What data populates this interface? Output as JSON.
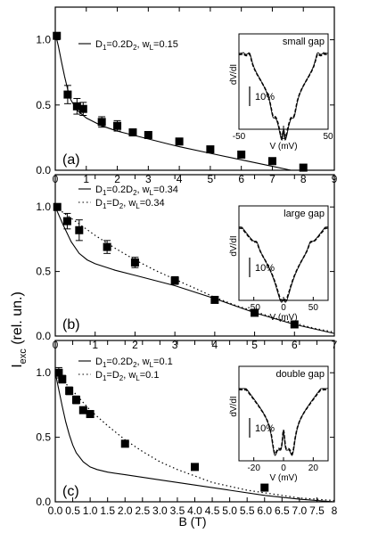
{
  "figure": {
    "ylabel_main": "I",
    "ylabel_sub": "exc",
    "ylabel_tail": " (rel. un.)",
    "xlabel": "B (T)"
  },
  "chart_data": [
    {
      "type": "scatter",
      "panel": "(a)",
      "xlim": [
        0,
        9
      ],
      "ylim": [
        0,
        1.25
      ],
      "xticks": [
        0,
        1,
        2,
        3,
        4,
        5,
        6,
        7,
        8,
        9
      ],
      "yticks": [
        0.0,
        0.5,
        1.0
      ],
      "points": [
        {
          "x": 0.05,
          "y": 1.03,
          "err": 0
        },
        {
          "x": 0.4,
          "y": 0.58,
          "err": 0.07
        },
        {
          "x": 0.7,
          "y": 0.49,
          "err": 0.06
        },
        {
          "x": 0.9,
          "y": 0.47,
          "err": 0.05
        },
        {
          "x": 1.5,
          "y": 0.37,
          "err": 0.04
        },
        {
          "x": 2.0,
          "y": 0.34,
          "err": 0.04
        },
        {
          "x": 2.5,
          "y": 0.29,
          "err": 0.02
        },
        {
          "x": 3.0,
          "y": 0.27,
          "err": 0.02
        },
        {
          "x": 4.0,
          "y": 0.22,
          "err": 0.02
        },
        {
          "x": 5.0,
          "y": 0.16,
          "err": 0.02
        },
        {
          "x": 6.0,
          "y": 0.12,
          "err": 0.02
        },
        {
          "x": 7.0,
          "y": 0.07,
          "err": 0.02
        },
        {
          "x": 8.0,
          "y": 0.02,
          "err": 0.02
        }
      ],
      "series": [
        {
          "name_main": "D",
          "name_parts": [
            [
              "1",
              true
            ],
            [
              "=0.2D",
              false
            ],
            [
              "2",
              true
            ],
            [
              ", w",
              false
            ],
            [
              "L",
              true
            ],
            [
              "=0.15",
              false
            ]
          ],
          "style": "solid",
          "x": [
            0,
            0.1,
            0.2,
            0.3,
            0.4,
            0.5,
            0.7,
            1.0,
            1.5,
            2,
            3,
            4,
            5,
            6,
            7,
            7.6
          ],
          "y": [
            1.05,
            0.95,
            0.83,
            0.72,
            0.62,
            0.54,
            0.46,
            0.4,
            0.34,
            0.3,
            0.24,
            0.18,
            0.13,
            0.08,
            0.03,
            0.0
          ]
        }
      ],
      "inset": {
        "title": "small gap",
        "xlabel": "V (mV)",
        "ylabel": "dV/dI",
        "scale": "10%",
        "xlim": [
          -50,
          50
        ],
        "xticks": [
          -50,
          0,
          50
        ],
        "type": "small"
      }
    },
    {
      "type": "scatter",
      "panel": "(b)",
      "xlim": [
        0,
        7
      ],
      "ylim": [
        0,
        1.25
      ],
      "xticks": [
        0,
        1,
        2,
        3,
        4,
        5,
        6,
        7
      ],
      "yticks": [
        0.0,
        0.5,
        1.0
      ],
      "points": [
        {
          "x": 0.05,
          "y": 1.0,
          "err": 0
        },
        {
          "x": 0.3,
          "y": 0.89,
          "err": 0.06
        },
        {
          "x": 0.6,
          "y": 0.82,
          "err": 0.08
        },
        {
          "x": 1.3,
          "y": 0.69,
          "err": 0.05
        },
        {
          "x": 2.0,
          "y": 0.57,
          "err": 0.04
        },
        {
          "x": 3.0,
          "y": 0.43,
          "err": 0.03
        },
        {
          "x": 4.0,
          "y": 0.28,
          "err": 0.02
        },
        {
          "x": 5.0,
          "y": 0.18,
          "err": 0.02
        },
        {
          "x": 6.0,
          "y": 0.09,
          "err": 0.02
        }
      ],
      "series": [
        {
          "name_main": "D",
          "name_parts": [
            [
              "1",
              true
            ],
            [
              "=0.2D",
              false
            ],
            [
              "2",
              true
            ],
            [
              ", w",
              false
            ],
            [
              "L",
              true
            ],
            [
              "=0.34",
              false
            ]
          ],
          "style": "solid",
          "x": [
            0,
            0.2,
            0.4,
            0.6,
            0.8,
            1.0,
            1.5,
            2,
            3,
            4,
            5,
            6,
            7
          ],
          "y": [
            1.0,
            0.86,
            0.73,
            0.64,
            0.59,
            0.56,
            0.51,
            0.47,
            0.39,
            0.29,
            0.18,
            0.09,
            0.02
          ]
        },
        {
          "name_main": "D",
          "name_parts": [
            [
              "1",
              true
            ],
            [
              "=D",
              false
            ],
            [
              "2",
              true
            ],
            [
              ",     w",
              false
            ],
            [
              "L",
              true
            ],
            [
              "=0.34",
              false
            ]
          ],
          "style": "dotted",
          "x": [
            0,
            0.5,
            1,
            1.5,
            2,
            2.5,
            3,
            3.5,
            4,
            4.5,
            5,
            5.5,
            6,
            6.5,
            7
          ],
          "y": [
            1.0,
            0.89,
            0.78,
            0.68,
            0.59,
            0.51,
            0.44,
            0.37,
            0.3,
            0.24,
            0.19,
            0.14,
            0.1,
            0.06,
            0.03
          ]
        }
      ],
      "inset": {
        "title": "large gap",
        "xlabel": "V (mV)",
        "ylabel": "dV/dI",
        "scale": "10%",
        "xlim": [
          -75,
          75
        ],
        "xticks": [
          -50,
          0,
          50
        ],
        "type": "large"
      }
    },
    {
      "type": "scatter",
      "panel": "(c)",
      "xlim": [
        0,
        8
      ],
      "ylim": [
        0,
        1.25
      ],
      "xticks": [
        0,
        0.5,
        1,
        1.5,
        2,
        2.5,
        3,
        3.5,
        4,
        4.5,
        5,
        5.5,
        6,
        6.5,
        7,
        7.5,
        8
      ],
      "xticklabels": [
        "0.0",
        "0.5",
        "1.0",
        "1.5",
        "2.0",
        "2.5",
        "3.0",
        "3.5",
        "4.0",
        "4.5",
        "5.0",
        "5.5",
        "6.0",
        "6.5",
        "7.0",
        "7.5",
        "8"
      ],
      "yticks": [
        0.0,
        0.5,
        1.0
      ],
      "points": [
        {
          "x": 0.1,
          "y": 1.0,
          "err": 0.04
        },
        {
          "x": 0.2,
          "y": 0.95,
          "err": 0.03
        },
        {
          "x": 0.4,
          "y": 0.86,
          "err": 0.03
        },
        {
          "x": 0.6,
          "y": 0.79,
          "err": 0.03
        },
        {
          "x": 0.8,
          "y": 0.71,
          "err": 0.02
        },
        {
          "x": 1.0,
          "y": 0.68,
          "err": 0.02
        },
        {
          "x": 2.0,
          "y": 0.45,
          "err": 0.02
        },
        {
          "x": 4.0,
          "y": 0.27,
          "err": 0.02
        },
        {
          "x": 6.0,
          "y": 0.11,
          "err": 0.02
        }
      ],
      "series": [
        {
          "name_main": "D",
          "name_parts": [
            [
              "1",
              true
            ],
            [
              "=0.2D",
              false
            ],
            [
              "2",
              true
            ],
            [
              ",     w",
              false
            ],
            [
              "L",
              true
            ],
            [
              "=0.1",
              false
            ]
          ],
          "style": "solid",
          "x": [
            0,
            0.1,
            0.2,
            0.3,
            0.4,
            0.5,
            0.6,
            0.8,
            1.0,
            1.2,
            1.5,
            2,
            3,
            4,
            5,
            6,
            7,
            8
          ],
          "y": [
            1.0,
            0.87,
            0.74,
            0.62,
            0.52,
            0.44,
            0.38,
            0.31,
            0.27,
            0.25,
            0.23,
            0.21,
            0.17,
            0.13,
            0.09,
            0.05,
            0.02,
            0.0
          ]
        },
        {
          "name_main": "D",
          "name_parts": [
            [
              "1",
              true
            ],
            [
              "=D",
              false
            ],
            [
              "2",
              true
            ],
            [
              ",        w",
              false
            ],
            [
              "L",
              true
            ],
            [
              "=0.1",
              false
            ]
          ],
          "style": "dotted",
          "x": [
            0,
            0.5,
            1,
            1.5,
            2,
            2.5,
            3,
            3.5,
            4,
            4.5,
            5,
            5.5,
            6,
            6.5,
            7,
            7.5,
            8
          ],
          "y": [
            1.0,
            0.86,
            0.71,
            0.59,
            0.48,
            0.39,
            0.31,
            0.25,
            0.2,
            0.15,
            0.12,
            0.09,
            0.07,
            0.05,
            0.03,
            0.02,
            0.01
          ]
        }
      ],
      "inset": {
        "title": "double gap",
        "xlabel": "V (mV)",
        "ylabel": "dV/dI",
        "scale": "10%",
        "xlim": [
          -30,
          30
        ],
        "xticks": [
          -20,
          0,
          20
        ],
        "type": "double"
      }
    }
  ]
}
